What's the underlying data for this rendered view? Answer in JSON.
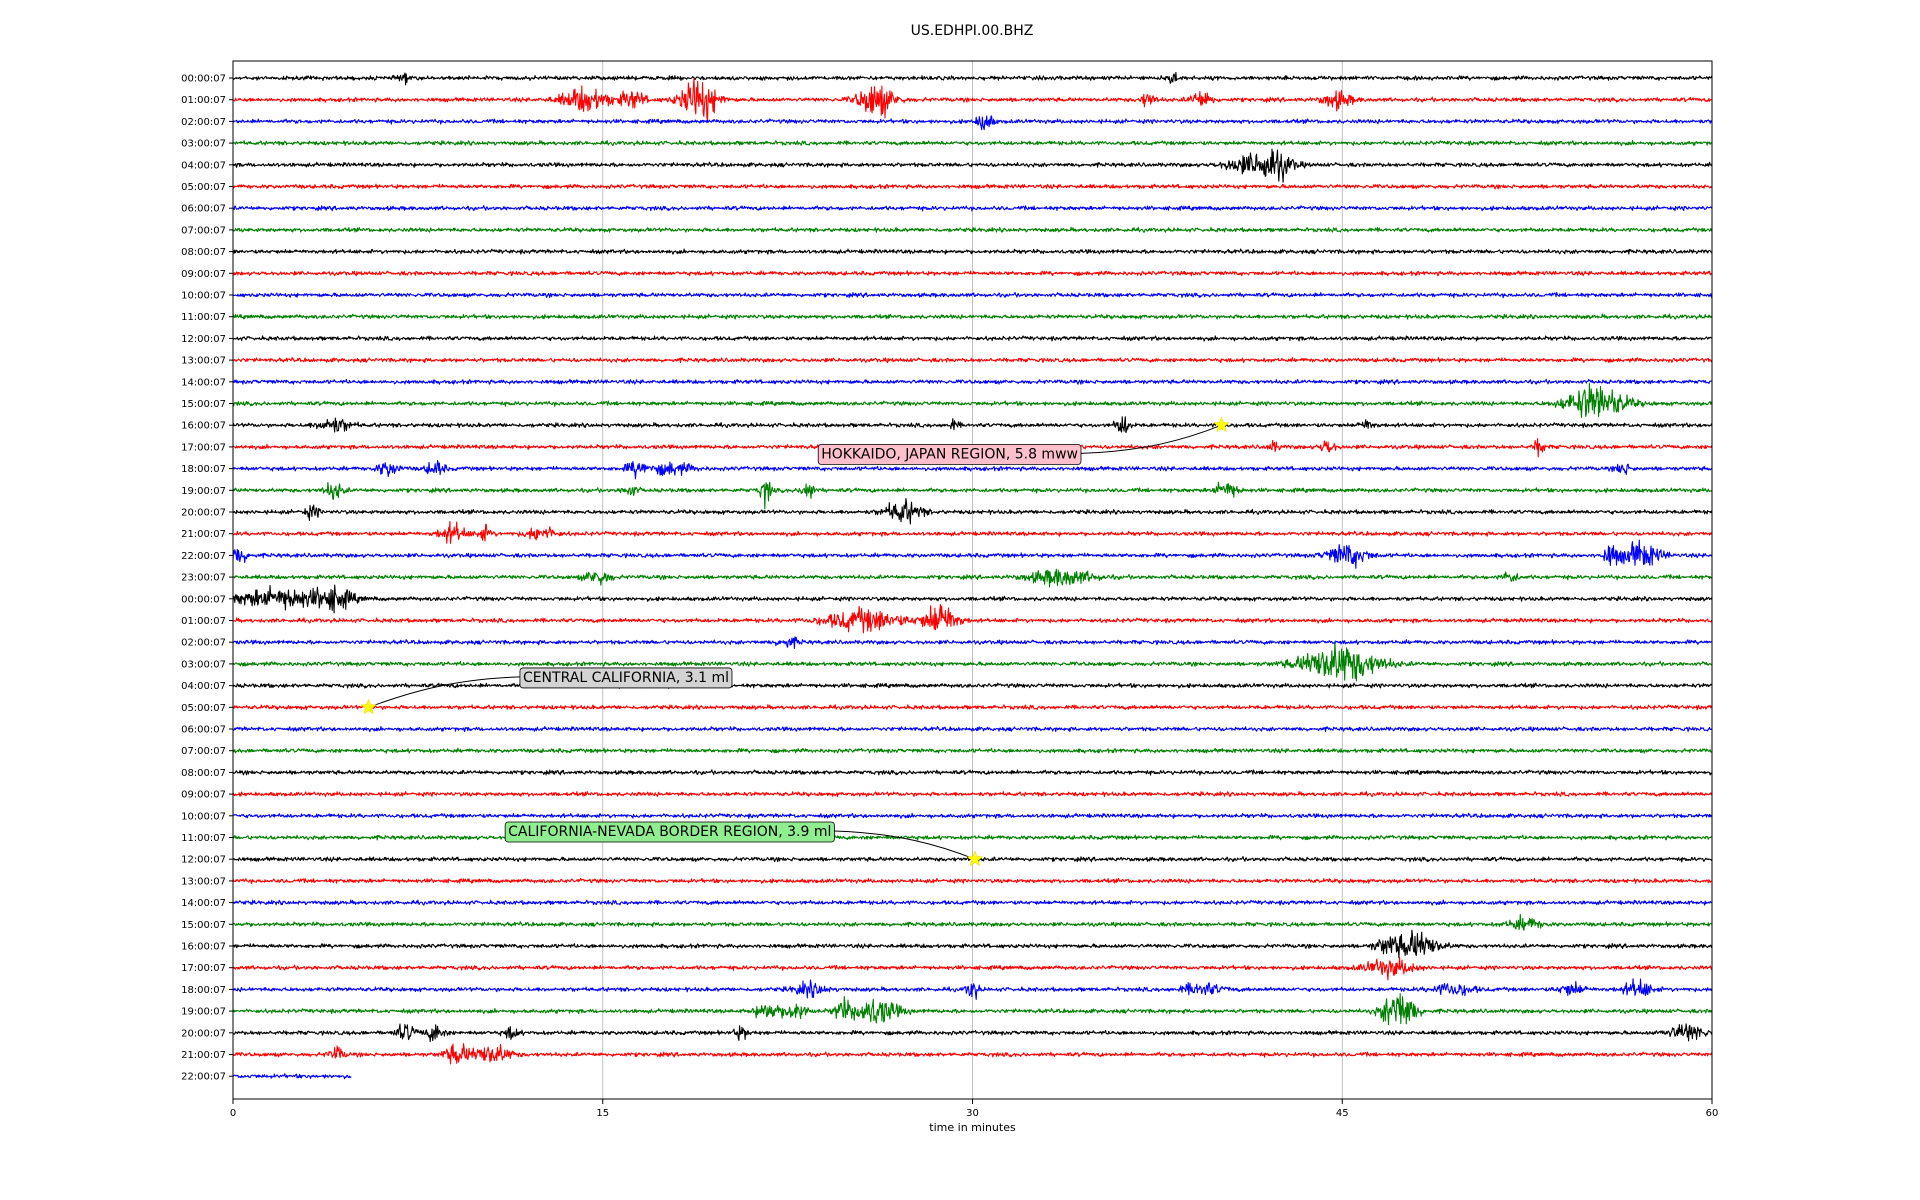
{
  "chart_data": {
    "type": "line",
    "title": "US.EDHPI.00.BHZ",
    "xlabel": "time in minutes",
    "ylabel": "",
    "xlim": [
      0,
      60
    ],
    "x_ticks": [
      0,
      15,
      30,
      45,
      60
    ],
    "x_tick_labels": [
      "0",
      "15",
      "30",
      "45",
      "60"
    ],
    "grid": "vertical at x ticks",
    "legend": "none",
    "trace_colors": [
      "#000000",
      "#ff0000",
      "#0000ff",
      "#008000"
    ],
    "row_labels": [
      "00:00:07",
      "01:00:07",
      "02:00:07",
      "03:00:07",
      "04:00:07",
      "05:00:07",
      "06:00:07",
      "07:00:07",
      "08:00:07",
      "09:00:07",
      "10:00:07",
      "11:00:07",
      "12:00:07",
      "13:00:07",
      "14:00:07",
      "15:00:07",
      "16:00:07",
      "17:00:07",
      "18:00:07",
      "19:00:07",
      "20:00:07",
      "21:00:07",
      "22:00:07",
      "23:00:07",
      "00:00:07",
      "01:00:07",
      "02:00:07",
      "03:00:07",
      "04:00:07",
      "05:00:07",
      "06:00:07",
      "07:00:07",
      "08:00:07",
      "09:00:07",
      "10:00:07",
      "11:00:07",
      "12:00:07",
      "13:00:07",
      "14:00:07",
      "15:00:07",
      "16:00:07",
      "17:00:07",
      "18:00:07",
      "19:00:07",
      "20:00:07",
      "21:00:07",
      "22:00:07"
    ],
    "last_row_end_minute": 4.8,
    "bursts": [
      {
        "row": 0,
        "minute": 6.9,
        "amp": 6,
        "dur": 0.1
      },
      {
        "row": 0,
        "minute": 38.1,
        "amp": 5,
        "dur": 0.2
      },
      {
        "row": 1,
        "minute": 14.3,
        "amp": 10,
        "dur": 1.2
      },
      {
        "row": 1,
        "minute": 16.2,
        "amp": 7,
        "dur": 0.6
      },
      {
        "row": 1,
        "minute": 18.9,
        "amp": 18,
        "dur": 0.9
      },
      {
        "row": 1,
        "minute": 26.1,
        "amp": 14,
        "dur": 0.9
      },
      {
        "row": 1,
        "minute": 37.1,
        "amp": 6,
        "dur": 0.3
      },
      {
        "row": 1,
        "minute": 39.3,
        "amp": 7,
        "dur": 0.5
      },
      {
        "row": 1,
        "minute": 44.8,
        "amp": 7,
        "dur": 0.7
      },
      {
        "row": 2,
        "minute": 30.5,
        "amp": 9,
        "dur": 0.3
      },
      {
        "row": 4,
        "minute": 41.0,
        "amp": 6,
        "dur": 1.0
      },
      {
        "row": 4,
        "minute": 42.2,
        "amp": 14,
        "dur": 0.9
      },
      {
        "row": 15,
        "minute": 55.3,
        "amp": 15,
        "dur": 1.5
      },
      {
        "row": 16,
        "minute": 4.1,
        "amp": 6,
        "dur": 0.8
      },
      {
        "row": 16,
        "minute": 29.2,
        "amp": 4,
        "dur": 0.2
      },
      {
        "row": 16,
        "minute": 36.1,
        "amp": 8,
        "dur": 0.3
      },
      {
        "row": 16,
        "minute": 46.0,
        "amp": 4,
        "dur": 0.3
      },
      {
        "row": 17,
        "minute": 42.2,
        "amp": 4,
        "dur": 0.2
      },
      {
        "row": 17,
        "minute": 44.4,
        "amp": 6,
        "dur": 0.3
      },
      {
        "row": 17,
        "minute": 53.0,
        "amp": 7,
        "dur": 0.2
      },
      {
        "row": 18,
        "minute": 6.3,
        "amp": 6,
        "dur": 0.5
      },
      {
        "row": 18,
        "minute": 8.2,
        "amp": 6,
        "dur": 0.4
      },
      {
        "row": 18,
        "minute": 16.4,
        "amp": 6,
        "dur": 0.5
      },
      {
        "row": 18,
        "minute": 17.8,
        "amp": 5,
        "dur": 1.0
      },
      {
        "row": 18,
        "minute": 56.4,
        "amp": 5,
        "dur": 0.3
      },
      {
        "row": 19,
        "minute": 4.1,
        "amp": 7,
        "dur": 0.4
      },
      {
        "row": 19,
        "minute": 16.1,
        "amp": 5,
        "dur": 0.3
      },
      {
        "row": 19,
        "minute": 21.6,
        "amp": 11,
        "dur": 0.2
      },
      {
        "row": 19,
        "minute": 23.3,
        "amp": 11,
        "dur": 0.2
      },
      {
        "row": 19,
        "minute": 40.3,
        "amp": 7,
        "dur": 0.5
      },
      {
        "row": 20,
        "minute": 3.2,
        "amp": 5,
        "dur": 0.3
      },
      {
        "row": 20,
        "minute": 27.2,
        "amp": 9,
        "dur": 0.9
      },
      {
        "row": 21,
        "minute": 8.9,
        "amp": 8,
        "dur": 0.6
      },
      {
        "row": 21,
        "minute": 10.2,
        "amp": 6,
        "dur": 0.3
      },
      {
        "row": 21,
        "minute": 12.5,
        "amp": 6,
        "dur": 0.7
      },
      {
        "row": 22,
        "minute": 0.2,
        "amp": 6,
        "dur": 0.5
      },
      {
        "row": 22,
        "minute": 45.2,
        "amp": 9,
        "dur": 1.0
      },
      {
        "row": 22,
        "minute": 55.9,
        "amp": 9,
        "dur": 0.3
      },
      {
        "row": 22,
        "minute": 57.1,
        "amp": 10,
        "dur": 1.0
      },
      {
        "row": 23,
        "minute": 14.8,
        "amp": 6,
        "dur": 0.6
      },
      {
        "row": 23,
        "minute": 33.6,
        "amp": 7,
        "dur": 1.6
      },
      {
        "row": 23,
        "minute": 51.8,
        "amp": 5,
        "dur": 0.3
      },
      {
        "row": 24,
        "minute": 1.9,
        "amp": 8,
        "dur": 2.5
      },
      {
        "row": 24,
        "minute": 4.1,
        "amp": 8,
        "dur": 0.9
      },
      {
        "row": 25,
        "minute": 25.6,
        "amp": 9,
        "dur": 2.0
      },
      {
        "row": 25,
        "minute": 28.7,
        "amp": 14,
        "dur": 0.8
      },
      {
        "row": 26,
        "minute": 22.5,
        "amp": 4,
        "dur": 0.5
      },
      {
        "row": 27,
        "minute": 44.9,
        "amp": 16,
        "dur": 2.0
      },
      {
        "row": 39,
        "minute": 52.4,
        "amp": 5,
        "dur": 0.8
      },
      {
        "row": 40,
        "minute": 46.8,
        "amp": 6,
        "dur": 0.6
      },
      {
        "row": 40,
        "minute": 48.0,
        "amp": 11,
        "dur": 1.1
      },
      {
        "row": 41,
        "minute": 46.9,
        "amp": 7,
        "dur": 1.2
      },
      {
        "row": 42,
        "minute": 23.4,
        "amp": 5,
        "dur": 0.8
      },
      {
        "row": 42,
        "minute": 30.0,
        "amp": 9,
        "dur": 0.2
      },
      {
        "row": 42,
        "minute": 39.3,
        "amp": 5,
        "dur": 1.0
      },
      {
        "row": 42,
        "minute": 49.5,
        "amp": 5,
        "dur": 1.0
      },
      {
        "row": 42,
        "minute": 54.3,
        "amp": 5,
        "dur": 0.6
      },
      {
        "row": 42,
        "minute": 57.0,
        "amp": 7,
        "dur": 0.7
      },
      {
        "row": 43,
        "minute": 21.7,
        "amp": 7,
        "dur": 0.6
      },
      {
        "row": 43,
        "minute": 22.8,
        "amp": 8,
        "dur": 0.5
      },
      {
        "row": 43,
        "minute": 24.7,
        "amp": 8,
        "dur": 0.3
      },
      {
        "row": 43,
        "minute": 26.0,
        "amp": 11,
        "dur": 1.2
      },
      {
        "row": 43,
        "minute": 47.3,
        "amp": 18,
        "dur": 0.8
      },
      {
        "row": 44,
        "minute": 7.0,
        "amp": 7,
        "dur": 0.4
      },
      {
        "row": 44,
        "minute": 8.2,
        "amp": 7,
        "dur": 0.4
      },
      {
        "row": 44,
        "minute": 11.3,
        "amp": 5,
        "dur": 0.3
      },
      {
        "row": 44,
        "minute": 20.6,
        "amp": 5,
        "dur": 0.3
      },
      {
        "row": 44,
        "minute": 59.0,
        "amp": 7,
        "dur": 0.9
      },
      {
        "row": 45,
        "minute": 4.2,
        "amp": 6,
        "dur": 0.3
      },
      {
        "row": 45,
        "minute": 9.1,
        "amp": 8,
        "dur": 0.6
      },
      {
        "row": 45,
        "minute": 10.5,
        "amp": 8,
        "dur": 0.9
      }
    ],
    "events": [
      {
        "label": "HOKKAIDO, JAPAN REGION, 5.8 mww",
        "row": 16,
        "minute": 40.1,
        "box_color": "#ffc0cb",
        "text_minute": 23.7,
        "text_row": 17.3
      },
      {
        "label": "CENTRAL CALIFORNIA, 3.1 ml",
        "row": 29,
        "minute": 5.5,
        "box_color": "#d3d3d3",
        "text_minute": 11.6,
        "text_row": 27.6
      },
      {
        "label": "CALIFORNIA-NEVADA BORDER REGION, 3.9 ml",
        "row": 36,
        "minute": 30.1,
        "box_color": "#90ee90",
        "text_minute": 11.0,
        "text_row": 34.7
      }
    ],
    "marker": "yellow-star"
  }
}
